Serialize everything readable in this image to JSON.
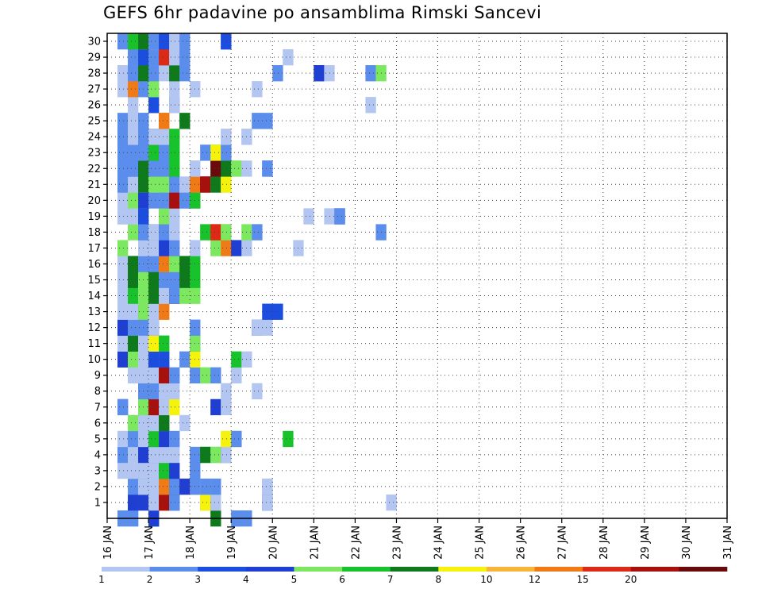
{
  "chart_data": {
    "type": "heatmap",
    "title": "GEFS 6hr padavine po ansamblima Rimski Sancevi",
    "y_ticks": [
      "1",
      "2",
      "3",
      "4",
      "5",
      "6",
      "7",
      "8",
      "9",
      "10",
      "11",
      "12",
      "13",
      "14",
      "15",
      "16",
      "17",
      "18",
      "19",
      "20",
      "21",
      "22",
      "23",
      "24",
      "25",
      "26",
      "27",
      "28",
      "29",
      "30"
    ],
    "x_ticks": [
      "16 JAN",
      "17 JAN",
      "18 JAN",
      "19 JAN",
      "20 JAN",
      "21 JAN",
      "22 JAN",
      "23 JAN",
      "24 JAN",
      "25 JAN",
      "26 JAN",
      "27 JAN",
      "28 JAN",
      "29 JAN",
      "30 JAN",
      "31 JAN"
    ],
    "xlim": [
      "16 JAN",
      "31 JAN"
    ],
    "ylim": [
      0,
      30
    ],
    "step_hours": 6,
    "grid": true,
    "colorbar": {
      "levels": [
        "1",
        "2",
        "3",
        "4",
        "5",
        "6",
        "7",
        "8",
        "10",
        "12",
        "15",
        "20"
      ],
      "colors": [
        "#b3c6f2",
        "#5b8ded",
        "#1a4de0",
        "#1f3fd4",
        "#7ce85f",
        "#17c22a",
        "#0e7a1c",
        "#f5f20c",
        "#f7b53a",
        "#f07a16",
        "#dc2a17",
        "#a8100e",
        "#6b0a0a"
      ]
    },
    "members": {
      "30": [
        [
          1,
          1
        ],
        [
          2,
          5
        ],
        [
          3,
          4
        ],
        [
          3,
          6
        ],
        [
          4,
          0
        ],
        [
          4,
          1
        ],
        [
          5,
          2
        ],
        [
          6,
          0
        ],
        [
          7,
          1
        ],
        [
          11,
          1
        ],
        [
          11,
          2
        ]
      ],
      "29": [
        [
          2,
          1
        ],
        [
          3,
          2
        ],
        [
          4,
          1
        ],
        [
          5,
          1
        ],
        [
          5,
          10
        ],
        [
          6,
          0
        ],
        [
          7,
          1
        ],
        [
          17,
          0
        ]
      ],
      "28": [
        [
          1,
          0
        ],
        [
          1,
          0
        ],
        [
          2,
          1
        ],
        [
          3,
          4
        ],
        [
          3,
          6
        ],
        [
          4,
          1
        ],
        [
          5,
          0
        ],
        [
          6,
          4
        ],
        [
          6,
          6
        ],
        [
          7,
          1
        ],
        [
          16,
          1
        ],
        [
          20,
          6
        ],
        [
          20,
          3
        ],
        [
          21,
          0
        ],
        [
          25,
          1
        ],
        [
          26,
          4
        ]
      ],
      "27": [
        [
          1,
          0
        ],
        [
          2,
          9
        ],
        [
          3,
          1
        ],
        [
          4,
          0
        ],
        [
          4,
          4
        ],
        [
          6,
          0
        ],
        [
          8,
          0
        ],
        [
          14,
          0
        ]
      ],
      "26": [
        [
          2,
          0
        ],
        [
          4,
          2
        ],
        [
          6,
          2
        ],
        [
          6,
          0
        ],
        [
          25,
          0
        ]
      ],
      "25": [
        [
          1,
          1
        ],
        [
          2,
          0
        ],
        [
          3,
          1
        ],
        [
          3,
          1
        ],
        [
          5,
          9
        ],
        [
          5,
          9
        ],
        [
          7,
          6
        ],
        [
          14,
          0
        ],
        [
          14,
          1
        ],
        [
          15,
          1
        ]
      ],
      "24": [
        [
          1,
          9
        ],
        [
          1,
          1
        ],
        [
          2,
          0
        ],
        [
          3,
          4
        ],
        [
          3,
          1
        ],
        [
          4,
          2
        ],
        [
          4,
          0
        ],
        [
          5,
          0
        ],
        [
          6,
          5
        ],
        [
          11,
          0
        ],
        [
          11,
          0
        ],
        [
          13,
          0
        ],
        [
          13,
          0
        ]
      ],
      "23": [
        [
          1,
          1
        ],
        [
          2,
          1
        ],
        [
          3,
          1
        ],
        [
          4,
          5
        ],
        [
          5,
          1
        ],
        [
          6,
          5
        ],
        [
          9,
          1
        ],
        [
          10,
          5
        ],
        [
          10,
          7
        ],
        [
          11,
          1
        ]
      ],
      "22": [
        [
          1,
          1
        ],
        [
          2,
          3
        ],
        [
          2,
          1
        ],
        [
          3,
          6
        ],
        [
          4,
          1
        ],
        [
          5,
          1
        ],
        [
          6,
          5
        ],
        [
          8,
          0
        ],
        [
          8,
          0
        ],
        [
          10,
          1
        ],
        [
          10,
          12
        ],
        [
          11,
          6
        ],
        [
          12,
          0
        ],
        [
          12,
          4
        ],
        [
          13,
          0
        ],
        [
          15,
          1
        ],
        [
          15,
          1
        ]
      ],
      "21": [
        [
          1,
          1
        ],
        [
          1,
          1
        ],
        [
          2,
          0
        ],
        [
          3,
          0
        ],
        [
          3,
          6
        ],
        [
          4,
          4
        ],
        [
          4,
          4
        ],
        [
          5,
          1
        ],
        [
          5,
          4
        ],
        [
          6,
          1
        ],
        [
          7,
          0
        ],
        [
          8,
          0
        ],
        [
          8,
          9
        ],
        [
          9,
          12
        ],
        [
          9,
          11
        ],
        [
          10,
          4
        ],
        [
          10,
          6
        ],
        [
          11,
          0
        ],
        [
          11,
          7
        ]
      ],
      "20": [
        [
          1,
          0
        ],
        [
          2,
          4
        ],
        [
          3,
          4
        ],
        [
          3,
          3
        ],
        [
          4,
          1
        ],
        [
          5,
          0
        ],
        [
          5,
          1
        ],
        [
          6,
          9
        ],
        [
          6,
          11
        ],
        [
          7,
          1
        ],
        [
          7,
          1
        ],
        [
          8,
          1
        ],
        [
          8,
          5
        ]
      ],
      "19": [
        [
          1,
          0
        ],
        [
          1,
          0
        ],
        [
          2,
          0
        ],
        [
          2,
          0
        ],
        [
          3,
          4
        ],
        [
          3,
          2
        ],
        [
          5,
          10
        ],
        [
          5,
          4
        ],
        [
          6,
          0
        ],
        [
          19,
          0
        ],
        [
          21,
          0
        ],
        [
          22,
          3
        ],
        [
          22,
          1
        ]
      ],
      "18": [
        [
          2,
          4
        ],
        [
          3,
          1
        ],
        [
          3,
          1
        ],
        [
          4,
          5
        ],
        [
          4,
          0
        ],
        [
          5,
          2
        ],
        [
          5,
          1
        ],
        [
          6,
          0
        ],
        [
          9,
          5
        ],
        [
          10,
          9
        ],
        [
          10,
          10
        ],
        [
          11,
          9
        ],
        [
          11,
          4
        ],
        [
          13,
          4
        ],
        [
          14,
          0
        ],
        [
          14,
          1
        ],
        [
          26,
          1
        ]
      ],
      "17": [
        [
          1,
          4
        ],
        [
          3,
          0
        ],
        [
          4,
          1
        ],
        [
          4,
          0
        ],
        [
          5,
          3
        ],
        [
          6,
          1
        ],
        [
          8,
          0
        ],
        [
          10,
          4
        ],
        [
          11,
          9
        ],
        [
          12,
          3
        ],
        [
          13,
          0
        ],
        [
          18,
          0
        ]
      ],
      "16": [
        [
          1,
          0
        ],
        [
          1,
          0
        ],
        [
          2,
          6
        ],
        [
          3,
          1
        ],
        [
          4,
          1
        ],
        [
          5,
          4
        ],
        [
          5,
          9
        ],
        [
          6,
          4
        ],
        [
          7,
          6
        ],
        [
          8,
          5
        ]
      ],
      "15": [
        [
          1,
          0
        ],
        [
          2,
          6
        ],
        [
          3,
          0
        ],
        [
          3,
          4
        ],
        [
          4,
          6
        ],
        [
          5,
          0
        ],
        [
          5,
          1
        ],
        [
          6,
          1
        ],
        [
          7,
          6
        ],
        [
          8,
          5
        ]
      ],
      "14": [
        [
          1,
          0
        ],
        [
          2,
          5
        ],
        [
          3,
          0
        ],
        [
          3,
          4
        ],
        [
          4,
          6
        ],
        [
          5,
          0
        ],
        [
          6,
          12
        ],
        [
          6,
          1
        ],
        [
          7,
          4
        ],
        [
          8,
          4
        ]
      ],
      "13": [
        [
          1,
          0
        ],
        [
          2,
          0
        ],
        [
          3,
          6
        ],
        [
          3,
          4
        ],
        [
          4,
          0
        ],
        [
          5,
          9
        ],
        [
          15,
          2
        ],
        [
          16,
          2
        ]
      ],
      "12": [
        [
          1,
          3
        ],
        [
          1,
          3
        ],
        [
          2,
          1
        ],
        [
          3,
          1
        ],
        [
          4,
          2
        ],
        [
          4,
          0
        ],
        [
          8,
          1
        ],
        [
          14,
          2
        ],
        [
          14,
          0
        ],
        [
          15,
          0
        ]
      ],
      "11": [
        [
          1,
          0
        ],
        [
          2,
          6
        ],
        [
          3,
          0
        ],
        [
          4,
          7
        ],
        [
          4,
          7
        ],
        [
          5,
          5
        ],
        [
          8,
          6
        ],
        [
          8,
          4
        ]
      ],
      "10": [
        [
          1,
          3
        ],
        [
          2,
          4
        ],
        [
          3,
          0
        ],
        [
          4,
          3
        ],
        [
          4,
          2
        ],
        [
          5,
          0
        ],
        [
          5,
          2
        ],
        [
          7,
          1
        ],
        [
          8,
          7
        ],
        [
          12,
          5
        ],
        [
          13,
          0
        ]
      ],
      "9": [
        [
          2,
          0
        ],
        [
          2,
          0
        ],
        [
          3,
          0
        ],
        [
          4,
          0
        ],
        [
          5,
          10
        ],
        [
          5,
          11
        ],
        [
          6,
          1
        ],
        [
          8,
          1
        ],
        [
          9,
          4
        ],
        [
          10,
          1
        ],
        [
          12,
          0
        ],
        [
          12,
          0
        ]
      ],
      "8": [
        [
          3,
          4
        ],
        [
          3,
          1
        ],
        [
          4,
          1
        ],
        [
          5,
          0
        ],
        [
          5,
          0
        ],
        [
          6,
          0
        ],
        [
          11,
          0
        ],
        [
          14,
          0
        ]
      ],
      "7": [
        [
          1,
          1
        ],
        [
          1,
          1
        ],
        [
          3,
          4
        ],
        [
          4,
          10
        ],
        [
          4,
          11
        ],
        [
          5,
          0
        ],
        [
          6,
          7
        ],
        [
          10,
          3
        ],
        [
          11,
          0
        ]
      ],
      "6": [
        [
          2,
          4
        ],
        [
          3,
          0
        ],
        [
          4,
          1
        ],
        [
          4,
          4
        ],
        [
          4,
          0
        ],
        [
          5,
          1
        ],
        [
          5,
          6
        ],
        [
          7,
          0
        ]
      ],
      "5": [
        [
          1,
          0
        ],
        [
          2,
          1
        ],
        [
          3,
          0
        ],
        [
          4,
          1
        ],
        [
          4,
          5
        ],
        [
          5,
          3
        ],
        [
          6,
          1
        ],
        [
          11,
          7
        ],
        [
          12,
          4
        ],
        [
          12,
          1
        ],
        [
          17,
          5
        ]
      ],
      "4": [
        [
          1,
          1
        ],
        [
          2,
          0
        ],
        [
          3,
          0
        ],
        [
          3,
          3
        ],
        [
          4,
          1
        ],
        [
          4,
          0
        ],
        [
          5,
          1
        ],
        [
          5,
          0
        ],
        [
          6,
          0
        ],
        [
          8,
          1
        ],
        [
          9,
          5
        ],
        [
          9,
          6
        ],
        [
          10,
          1
        ],
        [
          10,
          4
        ],
        [
          11,
          6
        ],
        [
          11,
          0
        ]
      ],
      "3": [
        [
          1,
          0
        ],
        [
          2,
          0
        ],
        [
          3,
          5
        ],
        [
          3,
          0
        ],
        [
          4,
          0
        ],
        [
          5,
          1
        ],
        [
          5,
          5
        ],
        [
          6,
          3
        ],
        [
          8,
          1
        ]
      ],
      "2": [
        [
          2,
          1
        ],
        [
          3,
          0
        ],
        [
          3,
          0
        ],
        [
          4,
          0
        ],
        [
          5,
          1
        ],
        [
          5,
          9
        ],
        [
          6,
          6
        ],
        [
          6,
          1
        ],
        [
          7,
          9
        ],
        [
          7,
          3
        ],
        [
          8,
          9
        ],
        [
          8,
          1
        ],
        [
          9,
          0
        ],
        [
          9,
          1
        ],
        [
          10,
          4
        ],
        [
          10,
          1
        ],
        [
          15,
          1
        ],
        [
          15,
          0
        ]
      ],
      "1": [
        [
          2,
          3
        ],
        [
          3,
          3
        ],
        [
          4,
          0
        ],
        [
          5,
          4
        ],
        [
          5,
          9
        ],
        [
          5,
          11
        ],
        [
          6,
          6
        ],
        [
          6,
          1
        ],
        [
          9,
          0
        ],
        [
          9,
          7
        ],
        [
          10,
          9
        ],
        [
          10,
          0
        ],
        [
          15,
          3
        ],
        [
          15,
          0
        ],
        [
          27,
          0
        ]
      ],
      "0": [
        [
          1,
          1
        ],
        [
          2,
          1
        ],
        [
          4,
          5
        ],
        [
          4,
          3
        ],
        [
          10,
          6
        ],
        [
          12,
          0
        ],
        [
          12,
          1
        ],
        [
          13,
          1
        ]
      ]
    }
  }
}
